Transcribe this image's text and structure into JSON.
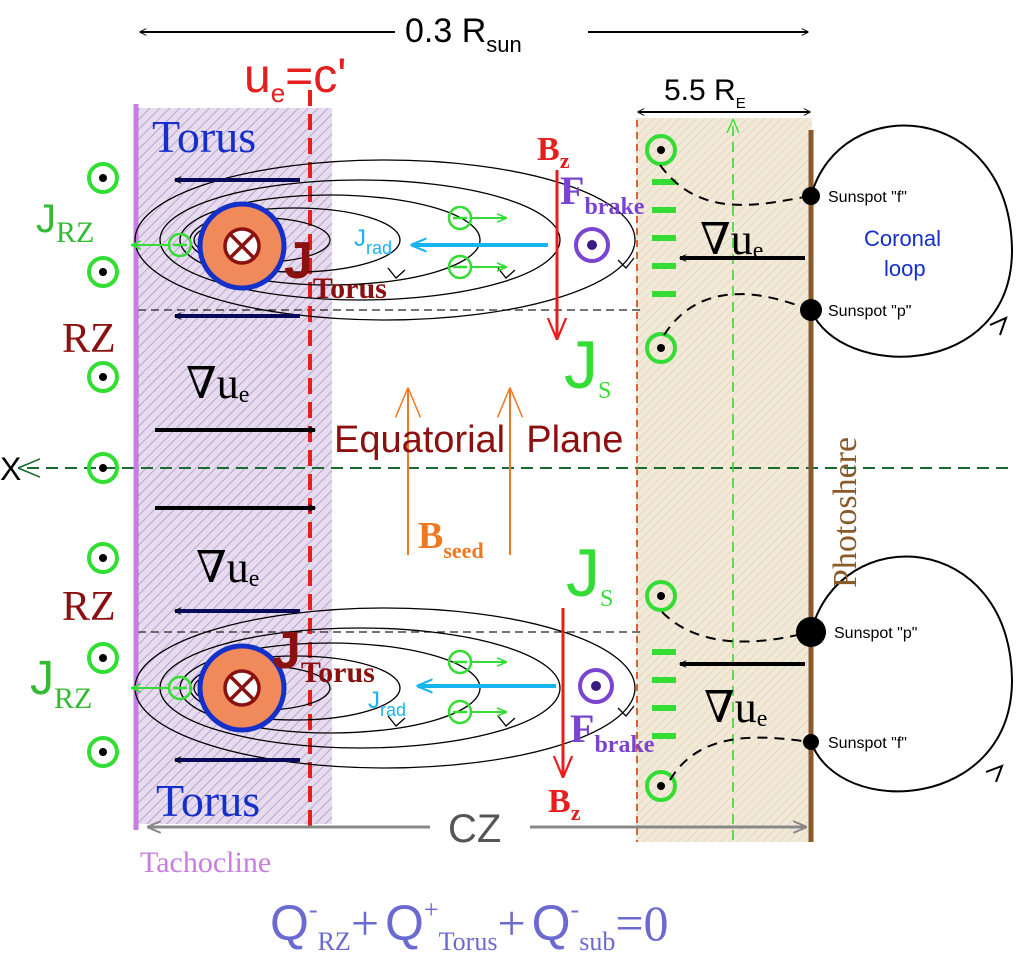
{
  "colors": {
    "tachocline": "#c77ee0",
    "ue_line": "#e51e1e",
    "green": "#33dd33",
    "navy": "#0a0a5a",
    "darkred": "#8b1010",
    "blue": "#1430c8",
    "cyan": "#18b4f0",
    "orange": "#f07820",
    "purple": "#7a44d0",
    "brown": "#8b5a2b",
    "gray": "#555555",
    "sand": "#f0e6d2",
    "dashgreen": "#1a6b30"
  },
  "labels": {
    "width_sun": "0.3 R",
    "width_sun_sub": "sun",
    "width_earth": "5.5 R",
    "width_earth_sub": "E",
    "ue_base": "u",
    "ue_sub": "e",
    "ue_rest": "=c'",
    "torus": "Torus",
    "j_letter": "J",
    "j_rz_sub": "RZ",
    "j_torus_sub": "Torus",
    "j_rad_sub": "rad",
    "j_s_sub": "S",
    "rz": "RZ",
    "grad_symbol": "∇",
    "grad_u": "u",
    "grad_sub": "e",
    "equatorial": "Equatorial  Plane",
    "x_axis": "X",
    "b_letter": "B",
    "b_seed_sub": "seed",
    "b_z_sub": "z",
    "f_letter": "F",
    "f_brake_sub": "brake",
    "sunspot_f": "Sunspot \"f\"",
    "sunspot_p": "Sunspot \"p\"",
    "coronal_line1": "Coronal",
    "coronal_line2": "loop",
    "photosphere": "Photoshere",
    "cz": "CZ",
    "tachocline": "Tachocline",
    "eq_q": "Q",
    "eq_minus": "-",
    "eq_plus": "+",
    "eq_sub_rz": "RZ",
    "eq_sub_torus": "Torus",
    "eq_sub_sub": "sub",
    "eq_zero": "=0"
  }
}
